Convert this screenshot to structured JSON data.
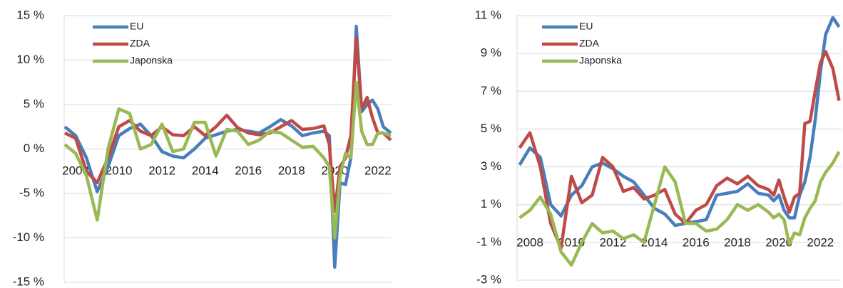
{
  "chart_data": [
    {
      "type": "line",
      "x": [
        2007.5,
        2008,
        2008.5,
        2009,
        2009.5,
        2010,
        2010.5,
        2011,
        2011.5,
        2012,
        2012.5,
        2013,
        2013.5,
        2014,
        2014.5,
        2015,
        2015.5,
        2016,
        2016.5,
        2017,
        2017.5,
        2018,
        2018.5,
        2019,
        2019.5,
        2019.75,
        2020,
        2020.25,
        2020.5,
        2020.75,
        2021,
        2021.25,
        2021.5,
        2021.75,
        2022,
        2022.25,
        2022.6
      ],
      "xlim": [
        2007.47,
        2022.6
      ],
      "xticks": [
        2008,
        2010,
        2012,
        2014,
        2016,
        2018,
        2020,
        2022
      ],
      "ylim": [
        -15,
        15
      ],
      "yticks": [
        {
          "value": -15,
          "label": "-15 %"
        },
        {
          "value": -10,
          "label": "-10 %"
        },
        {
          "value": -5,
          "label": "-5 %"
        },
        {
          "value": 0,
          "label": "0 %"
        },
        {
          "value": 5,
          "label": "5 %"
        },
        {
          "value": 10,
          "label": "10 %"
        },
        {
          "value": 15,
          "label": "15 %"
        }
      ],
      "grid": true,
      "legend": "upper left",
      "series": [
        {
          "name": "EU",
          "color": "#4a7ebb",
          "values": [
            2.5,
            1.5,
            -1,
            -4.8,
            -2,
            1.5,
            2.3,
            2.8,
            1.5,
            -0.3,
            -0.8,
            -1,
            0,
            1.2,
            1.6,
            2,
            2.2,
            2,
            1.8,
            2.5,
            3.3,
            2.6,
            1.5,
            1.8,
            2,
            1.5,
            -13.3,
            -3.8,
            -4,
            -1,
            13.8,
            4.2,
            5,
            5.5,
            4.5,
            2.5,
            1.8
          ]
        },
        {
          "name": "ZDA",
          "color": "#be4b48",
          "values": [
            1.8,
            1.2,
            -2.5,
            -3.8,
            -1,
            2.5,
            3.2,
            2,
            1.5,
            2.5,
            1.6,
            1.5,
            2.5,
            1.5,
            2.5,
            3.8,
            2.4,
            1.8,
            1.6,
            1.8,
            2.5,
            3.2,
            2.2,
            2.3,
            2.6,
            0.5,
            -7,
            -2,
            -1,
            1.5,
            12.5,
            4.5,
            5.8,
            3.5,
            1.8,
            1.8,
            1
          ]
        },
        {
          "name": "Japonska",
          "color": "#98b954",
          "values": [
            0.5,
            -0.5,
            -3,
            -8,
            0,
            4.5,
            4,
            0,
            0.5,
            2.8,
            -0.3,
            0,
            3,
            3,
            -0.8,
            2.2,
            2,
            0.5,
            1,
            2,
            1.8,
            1,
            0.2,
            0.3,
            -1,
            -2,
            -10,
            -3,
            -0.5,
            -1,
            7.5,
            2,
            0.5,
            0.5,
            1.8,
            1.8,
            1.5
          ]
        }
      ]
    },
    {
      "type": "line",
      "x": [
        2007.5,
        2008,
        2008.5,
        2009,
        2009.5,
        2010,
        2010.5,
        2011,
        2011.5,
        2012,
        2012.5,
        2013,
        2013.5,
        2014,
        2014.5,
        2015,
        2015.5,
        2016,
        2016.5,
        2017,
        2017.5,
        2018,
        2018.5,
        2019,
        2019.5,
        2019.75,
        2020,
        2020.25,
        2020.5,
        2020.75,
        2021,
        2021.25,
        2021.5,
        2021.75,
        2022,
        2022.25,
        2022.6,
        2022.9
      ],
      "xlim": [
        2007.38,
        2023.02
      ],
      "xticks": [
        2008,
        2010,
        2012,
        2014,
        2016,
        2018,
        2020,
        2022
      ],
      "ylim": [
        -3,
        11
      ],
      "yticks": [
        {
          "value": -3,
          "label": "-3 %"
        },
        {
          "value": -1,
          "label": "-1 %"
        },
        {
          "value": 1,
          "label": "1 %"
        },
        {
          "value": 3,
          "label": "3 %"
        },
        {
          "value": 5,
          "label": "5 %"
        },
        {
          "value": 7,
          "label": "7 %"
        },
        {
          "value": 9,
          "label": "9 %"
        },
        {
          "value": 11,
          "label": "11 %"
        }
      ],
      "grid": true,
      "legend": "upper left",
      "series": [
        {
          "name": "EU",
          "color": "#4a7ebb",
          "values": [
            3.1,
            4,
            3.5,
            1,
            0.4,
            1.5,
            2,
            3,
            3.2,
            2.9,
            2.5,
            2.2,
            1.5,
            0.8,
            0.5,
            -0.1,
            0,
            0.1,
            0.2,
            1.5,
            1.6,
            1.7,
            2.1,
            1.6,
            1.5,
            1.2,
            1.5,
            0.7,
            0.3,
            0.3,
            1.5,
            2.2,
            3.5,
            5.5,
            8,
            10,
            10.9,
            10.4
          ]
        },
        {
          "name": "ZDA",
          "color": "#be4b48",
          "values": [
            4,
            4.8,
            3,
            0,
            -1.3,
            2.5,
            1.1,
            1.5,
            3.5,
            3,
            1.7,
            1.9,
            1.3,
            1.5,
            1.8,
            0.5,
            0,
            0.7,
            1,
            2,
            2.4,
            2.1,
            2.5,
            2,
            1.8,
            1.5,
            2.3,
            1.4,
            0.6,
            1.4,
            1.6,
            5.3,
            5.4,
            7,
            8.5,
            9.1,
            8.2,
            6.5
          ]
        },
        {
          "name": "Japonska",
          "color": "#98b954",
          "values": [
            0.3,
            0.7,
            1.4,
            0.5,
            -1.5,
            -2.2,
            -1,
            0,
            -0.5,
            -0.4,
            -0.8,
            -0.6,
            -1,
            1,
            3,
            2.2,
            0,
            0,
            -0.4,
            -0.3,
            0.2,
            1,
            0.7,
            1,
            0.6,
            0.3,
            0.5,
            0.2,
            -1.1,
            -0.5,
            -0.6,
            0.3,
            0.8,
            1.2,
            2.2,
            2.7,
            3.2,
            3.8
          ]
        }
      ]
    }
  ]
}
